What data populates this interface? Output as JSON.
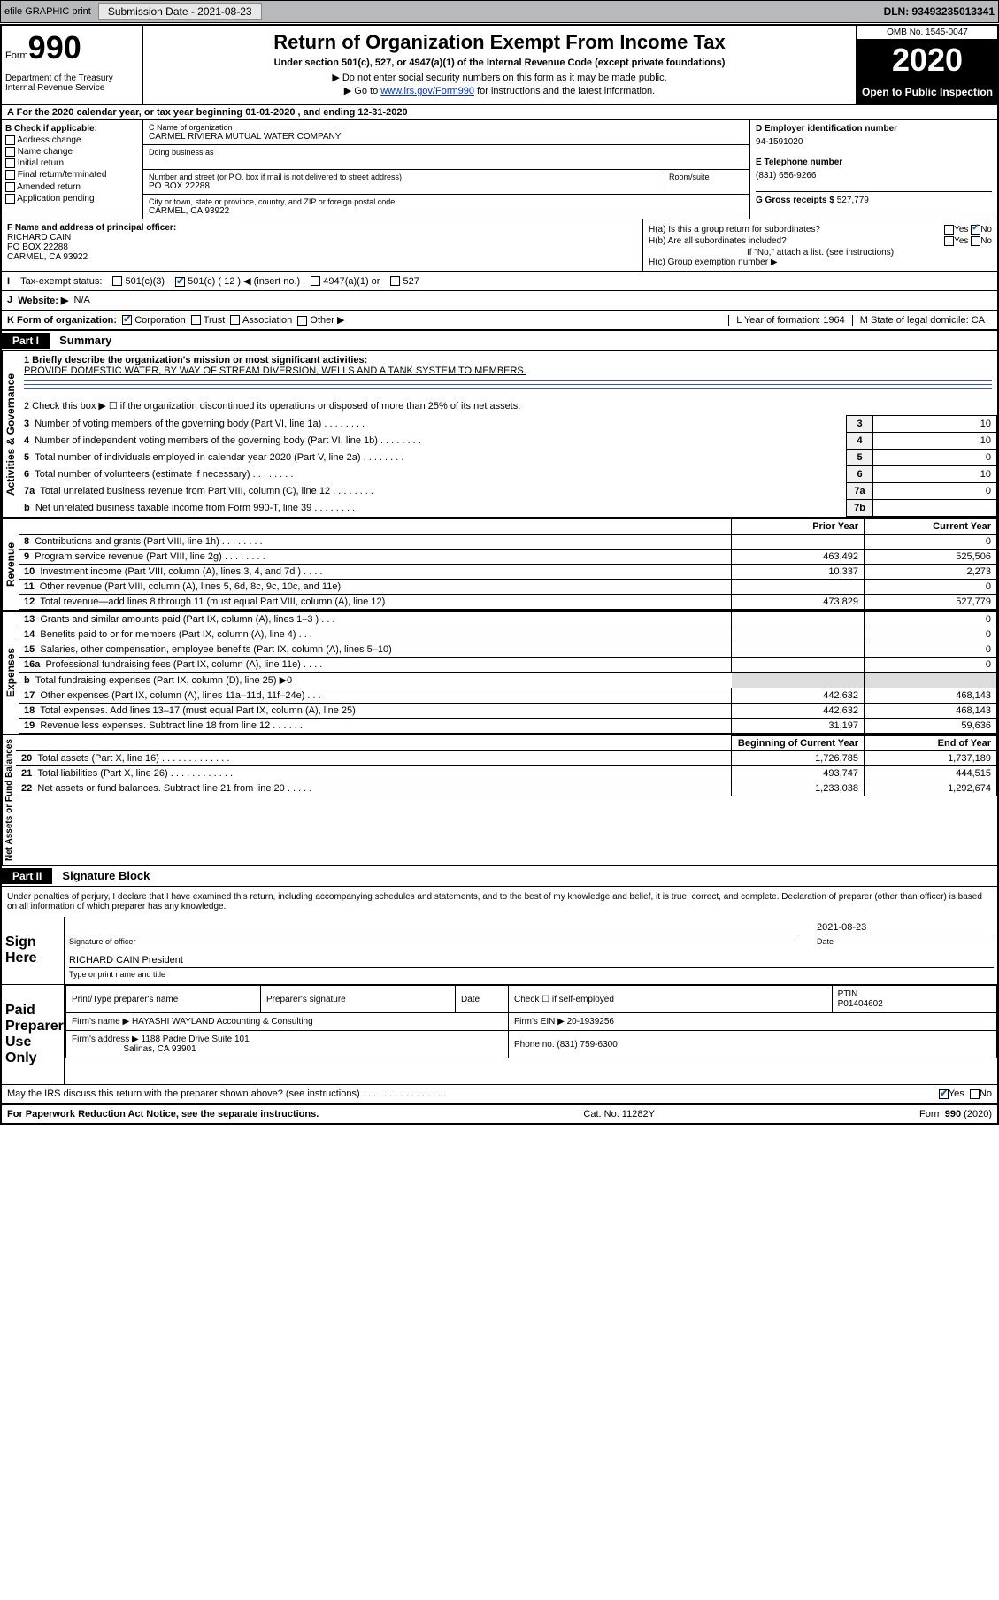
{
  "toolbar": {
    "efile": "efile GRAPHIC print",
    "submission_label": "Submission Date - 2021-08-23",
    "dln": "DLN: 93493235013341"
  },
  "header": {
    "form_label": "Form",
    "form_number": "990",
    "dept": "Department of the Treasury\nInternal Revenue Service",
    "title": "Return of Organization Exempt From Income Tax",
    "subtitle": "Under section 501(c), 527, or 4947(a)(1) of the Internal Revenue Code (except private foundations)",
    "instr1": "▶ Do not enter social security numbers on this form as it may be made public.",
    "instr2_pre": "▶ Go to ",
    "instr2_link": "www.irs.gov/Form990",
    "instr2_post": " for instructions and the latest information.",
    "omb": "OMB No. 1545-0047",
    "year": "2020",
    "inspection": "Open to Public Inspection"
  },
  "lineA": "A For the 2020 calendar year, or tax year beginning 01-01-2020    , and ending 12-31-2020",
  "sectionB": {
    "label": "B Check if applicable:",
    "opts": [
      "Address change",
      "Name change",
      "Initial return",
      "Final return/terminated",
      "Amended return",
      "Application pending"
    ]
  },
  "sectionC": {
    "name_label": "C Name of organization",
    "name": "CARMEL RIVIERA MUTUAL WATER COMPANY",
    "dba_label": "Doing business as",
    "dba": "",
    "street_label": "Number and street (or P.O. box if mail is not delivered to street address)",
    "room_label": "Room/suite",
    "street": "PO BOX 22288",
    "city_label": "City or town, state or province, country, and ZIP or foreign postal code",
    "city": "CARMEL, CA  93922"
  },
  "sectionD": {
    "label": "D Employer identification number",
    "value": "94-1591020"
  },
  "sectionE": {
    "label": "E Telephone number",
    "value": "(831) 656-9266"
  },
  "sectionG": {
    "label": "G Gross receipts $",
    "value": "527,779"
  },
  "sectionF": {
    "label": "F Name and address of principal officer:",
    "name": "RICHARD CAIN",
    "addr1": "PO BOX 22288",
    "addr2": "CARMEL, CA  93922"
  },
  "sectionH": {
    "a": "H(a)  Is this a group return for subordinates?",
    "b": "H(b)  Are all subordinates included?",
    "b_note": "If \"No,\" attach a list. (see instructions)",
    "c": "H(c)  Group exemption number ▶"
  },
  "rowI": {
    "label": "Tax-exempt status:",
    "opt1": "501(c)(3)",
    "opt2": "501(c) ( 12 ) ◀ (insert no.)",
    "opt3": "4947(a)(1) or",
    "opt4": "527"
  },
  "rowJ": {
    "label": "Website: ▶",
    "value": "N/A"
  },
  "rowK": {
    "label": "K Form of organization:",
    "opts": [
      "Corporation",
      "Trust",
      "Association",
      "Other ▶"
    ],
    "L": "L Year of formation: 1964",
    "M": "M State of legal domicile: CA"
  },
  "part1": {
    "header": "Part I",
    "title": "Summary",
    "q1_label": "1   Briefly describe the organization's mission or most significant activities:",
    "q1_value": "PROVIDE DOMESTIC WATER, BY WAY OF STREAM DIVERSION, WELLS AND A TANK SYSTEM TO MEMBERS.",
    "q2": "2   Check this box ▶ ☐  if the organization discontinued its operations or disposed of more than 25% of its net assets.",
    "governance_rows": [
      {
        "n": "3",
        "txt": "Number of voting members of the governing body (Part VI, line 1a)",
        "box": "3",
        "val": "10"
      },
      {
        "n": "4",
        "txt": "Number of independent voting members of the governing body (Part VI, line 1b)",
        "box": "4",
        "val": "10"
      },
      {
        "n": "5",
        "txt": "Total number of individuals employed in calendar year 2020 (Part V, line 2a)",
        "box": "5",
        "val": "0"
      },
      {
        "n": "6",
        "txt": "Total number of volunteers (estimate if necessary)",
        "box": "6",
        "val": "10"
      },
      {
        "n": "7a",
        "txt": "Total unrelated business revenue from Part VIII, column (C), line 12",
        "box": "7a",
        "val": "0"
      },
      {
        "n": "b",
        "txt": "Net unrelated business taxable income from Form 990-T, line 39",
        "box": "7b",
        "val": ""
      }
    ],
    "vlabels": {
      "gov": "Activities & Governance",
      "rev": "Revenue",
      "exp": "Expenses",
      "net": "Net Assets or Fund Balances"
    },
    "col_headers": {
      "prior": "Prior Year",
      "current": "Current Year"
    },
    "revenue_rows": [
      {
        "n": "8",
        "txt": "Contributions and grants (Part VIII, line 1h)   .   .   .   .   .   .   .   .",
        "prior": "",
        "current": "0"
      },
      {
        "n": "9",
        "txt": "Program service revenue (Part VIII, line 2g)   .   .   .   .   .   .   .   .",
        "prior": "463,492",
        "current": "525,506"
      },
      {
        "n": "10",
        "txt": "Investment income (Part VIII, column (A), lines 3, 4, and 7d )   .   .   .   .",
        "prior": "10,337",
        "current": "2,273"
      },
      {
        "n": "11",
        "txt": "Other revenue (Part VIII, column (A), lines 5, 6d, 8c, 9c, 10c, and 11e)",
        "prior": "",
        "current": "0"
      },
      {
        "n": "12",
        "txt": "Total revenue—add lines 8 through 11 (must equal Part VIII, column (A), line 12)",
        "prior": "473,829",
        "current": "527,779"
      }
    ],
    "expense_rows": [
      {
        "n": "13",
        "txt": "Grants and similar amounts paid (Part IX, column (A), lines 1–3 )   .   .   .",
        "prior": "",
        "current": "0"
      },
      {
        "n": "14",
        "txt": "Benefits paid to or for members (Part IX, column (A), line 4)   .   .   .",
        "prior": "",
        "current": "0"
      },
      {
        "n": "15",
        "txt": "Salaries, other compensation, employee benefits (Part IX, column (A), lines 5–10)",
        "prior": "",
        "current": "0"
      },
      {
        "n": "16a",
        "txt": "Professional fundraising fees (Part IX, column (A), line 11e)   .   .   .   .",
        "prior": "",
        "current": "0"
      },
      {
        "n": "b",
        "txt": "Total fundraising expenses (Part IX, column (D), line 25) ▶0",
        "prior": "—",
        "current": "—"
      },
      {
        "n": "17",
        "txt": "Other expenses (Part IX, column (A), lines 11a–11d, 11f–24e)   .   .   .",
        "prior": "442,632",
        "current": "468,143"
      },
      {
        "n": "18",
        "txt": "Total expenses. Add lines 13–17 (must equal Part IX, column (A), line 25)",
        "prior": "442,632",
        "current": "468,143"
      },
      {
        "n": "19",
        "txt": "Revenue less expenses. Subtract line 18 from line 12   .   .   .   .   .   .",
        "prior": "31,197",
        "current": "59,636"
      }
    ],
    "net_headers": {
      "begin": "Beginning of Current Year",
      "end": "End of Year"
    },
    "net_rows": [
      {
        "n": "20",
        "txt": "Total assets (Part X, line 16)   .   .   .   .   .   .   .   .   .   .   .   .   .",
        "prior": "1,726,785",
        "current": "1,737,189"
      },
      {
        "n": "21",
        "txt": "Total liabilities (Part X, line 26)   .   .   .   .   .   .   .   .   .   .   .   .",
        "prior": "493,747",
        "current": "444,515"
      },
      {
        "n": "22",
        "txt": "Net assets or fund balances. Subtract line 21 from line 20   .   .   .   .   .",
        "prior": "1,233,038",
        "current": "1,292,674"
      }
    ]
  },
  "part2": {
    "header": "Part II",
    "title": "Signature Block",
    "declaration": "Under penalties of perjury, I declare that I have examined this return, including accompanying schedules and statements, and to the best of my knowledge and belief, it is true, correct, and complete. Declaration of preparer (other than officer) is based on all information of which preparer has any knowledge.",
    "sign_here": "Sign Here",
    "sig_officer": "Signature of officer",
    "sig_date": "2021-08-23",
    "date_label": "Date",
    "officer_name": "RICHARD CAIN President",
    "type_label": "Type or print name and title",
    "paid_label": "Paid Preparer Use Only",
    "prep_headers": [
      "Print/Type preparer's name",
      "Preparer's signature",
      "Date"
    ],
    "check_self": "Check ☐ if self-employed",
    "ptin_label": "PTIN",
    "ptin": "P01404602",
    "firm_name_label": "Firm's name   ▶",
    "firm_name": "HAYASHI WAYLAND Accounting & Consulting",
    "firm_ein_label": "Firm's EIN ▶",
    "firm_ein": "20-1939256",
    "firm_addr_label": "Firm's address ▶",
    "firm_addr1": "1188 Padre Drive Suite 101",
    "firm_addr2": "Salinas, CA  93901",
    "phone_label": "Phone no.",
    "phone": "(831) 759-6300",
    "discuss": "May the IRS discuss this return with the preparer shown above? (see instructions)   .   .   .   .   .   .   .   .   .   .   .   .   .   .   .   ."
  },
  "footer": {
    "left": "For Paperwork Reduction Act Notice, see the separate instructions.",
    "mid": "Cat. No. 11282Y",
    "right": "Form 990 (2020)"
  }
}
